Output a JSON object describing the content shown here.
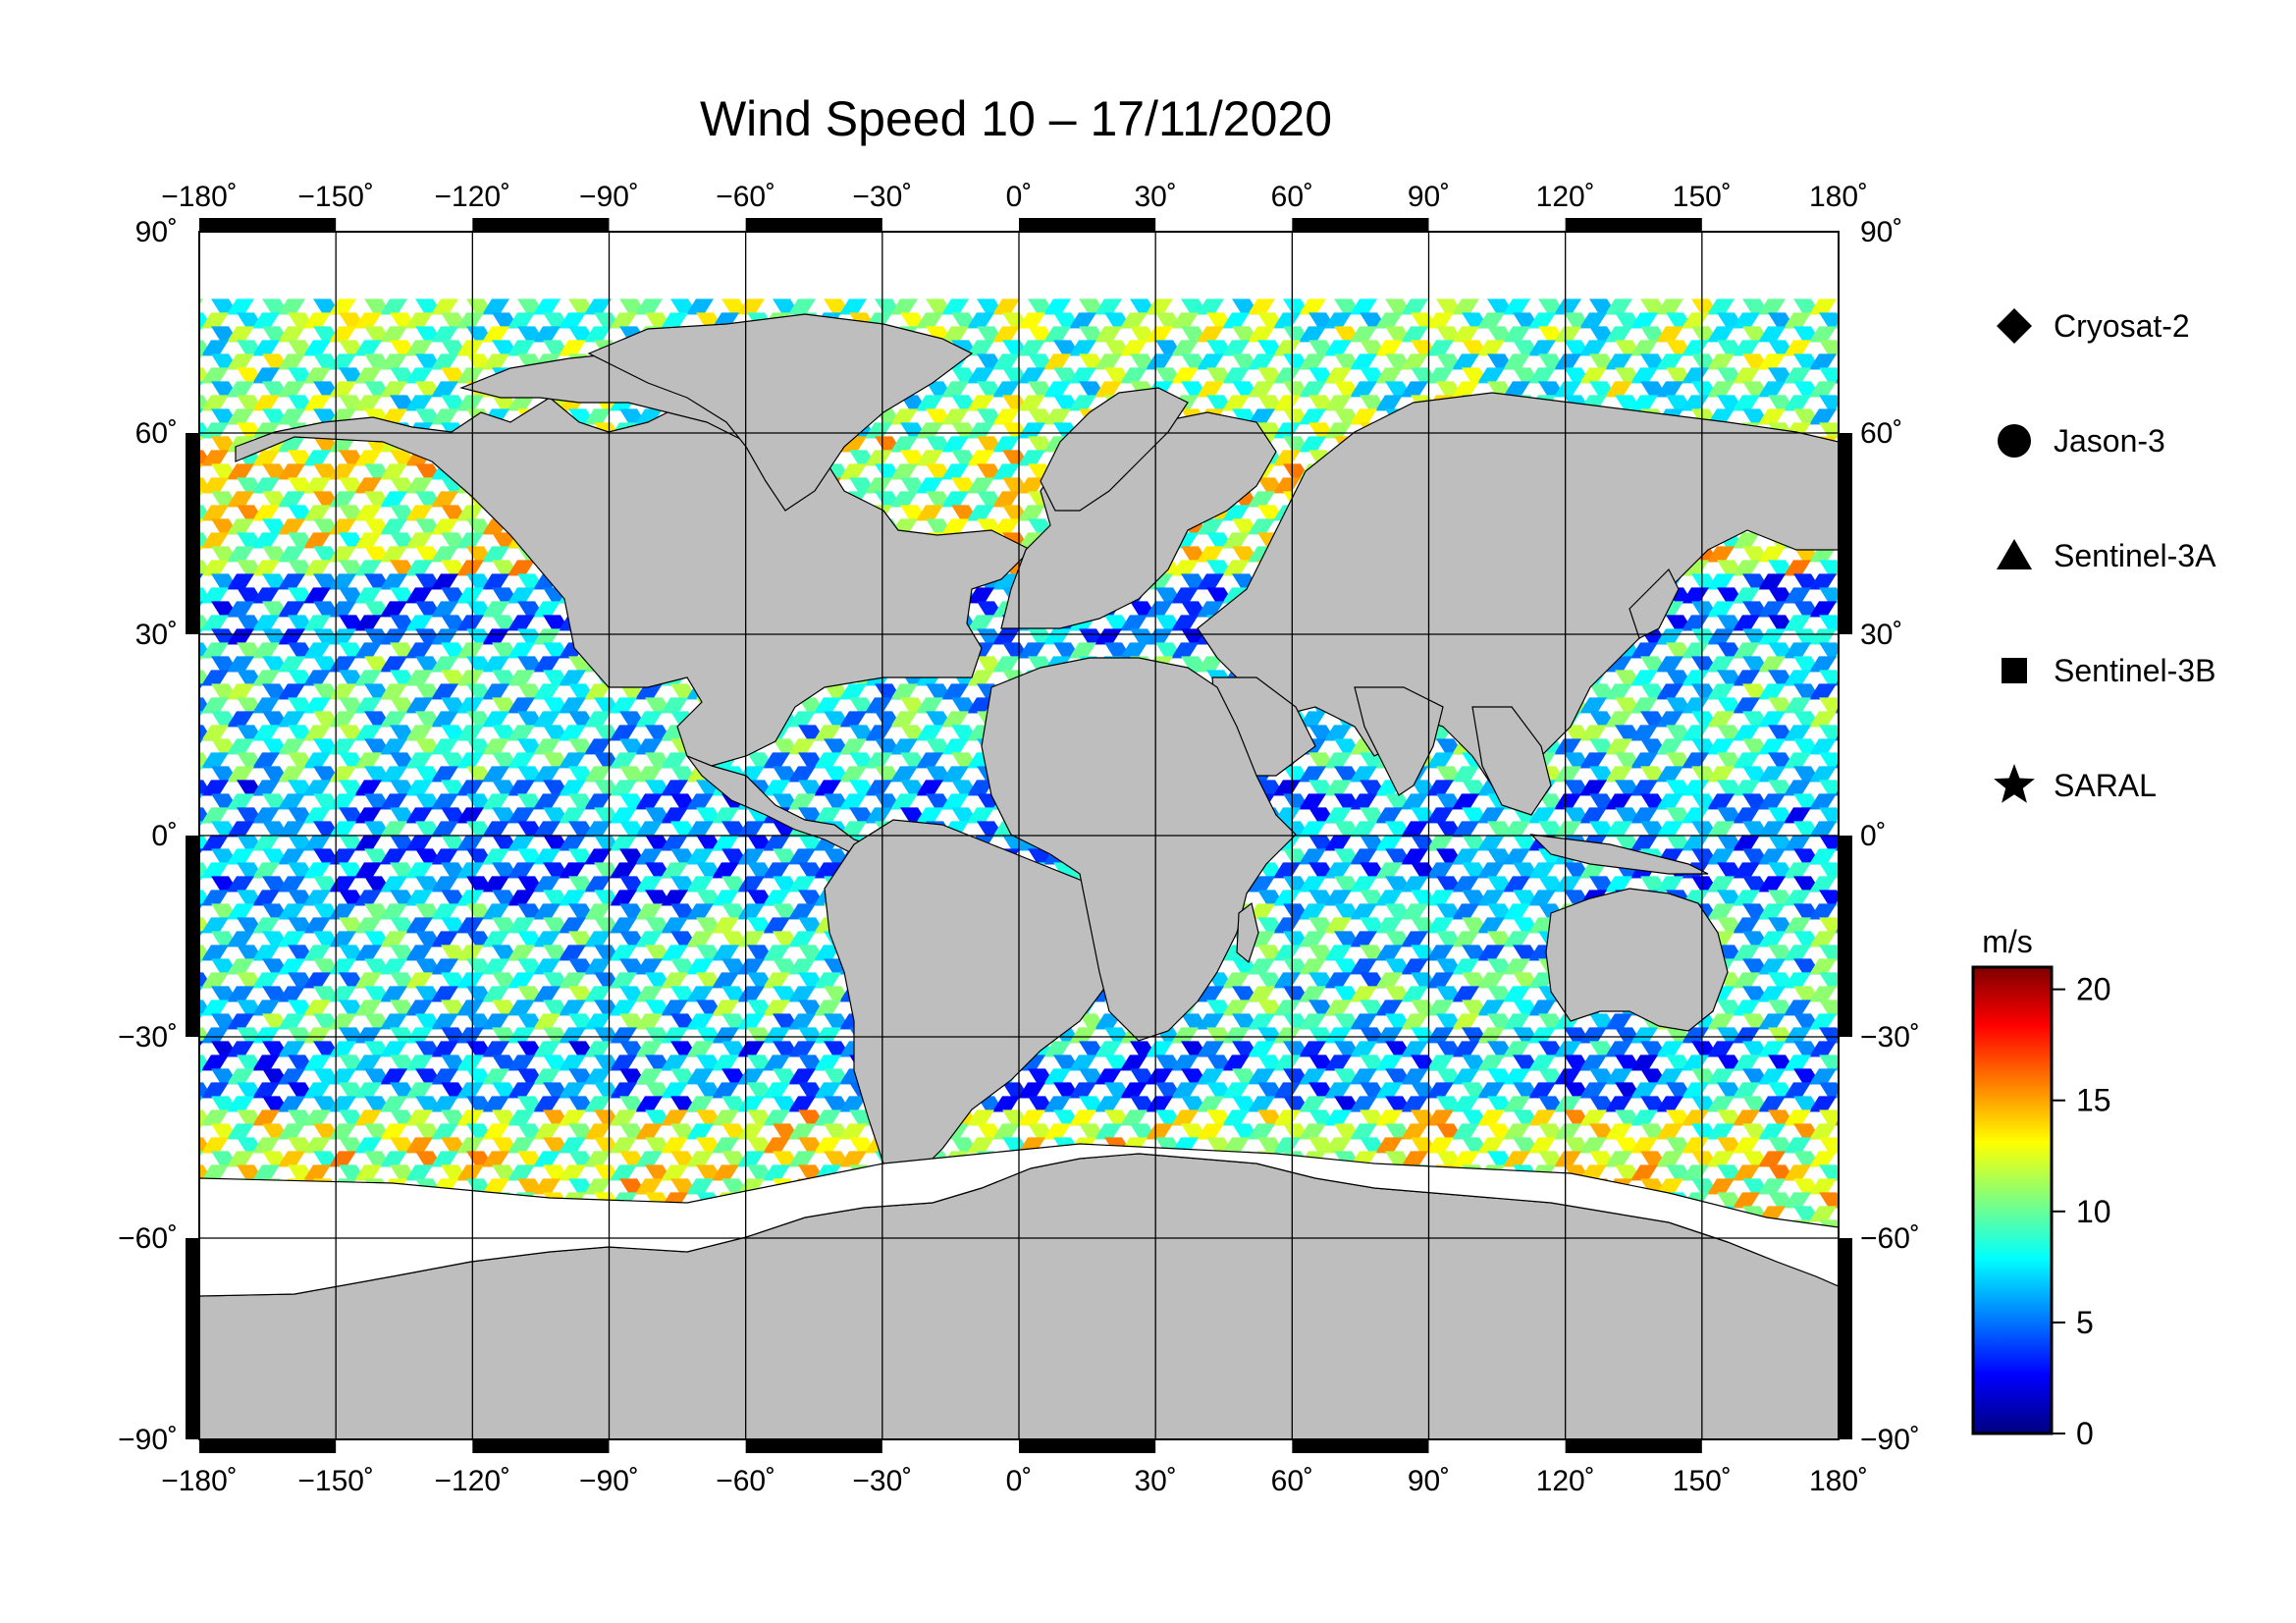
{
  "title": "Wind Speed 10 – 17/11/2020",
  "map": {
    "projection": "equirectangular",
    "lon_range": [
      -180,
      180
    ],
    "lat_range": [
      -90,
      90
    ],
    "lon_ticks": [
      -180,
      -150,
      -120,
      -90,
      -60,
      -30,
      0,
      30,
      60,
      90,
      120,
      150,
      180
    ],
    "lat_ticks": [
      -90,
      -60,
      -30,
      0,
      30,
      60,
      90
    ],
    "lon_tick_labels": [
      "−180˚",
      "−150˚",
      "−120˚",
      "−90˚",
      "−60˚",
      "−30˚",
      "0˚",
      "30˚",
      "60˚",
      "90˚",
      "120˚",
      "150˚",
      "180˚"
    ],
    "lat_tick_labels": [
      "−90˚",
      "−60˚",
      "−30˚",
      "0˚",
      "30˚",
      "60˚",
      "90˚"
    ],
    "grid": true,
    "land_color": "#bebebe",
    "ice_color": "#ffffff",
    "variable": "wind speed at 10 m",
    "data_extent_lat": [
      -65,
      80
    ]
  },
  "legend": {
    "placement": "right",
    "items": [
      {
        "label": "Cryosat-2",
        "marker": "diamond"
      },
      {
        "label": "Jason-3",
        "marker": "circle"
      },
      {
        "label": "Sentinel-3A",
        "marker": "triangle"
      },
      {
        "label": "Sentinel-3B",
        "marker": "square"
      },
      {
        "label": "SARAL",
        "marker": "star"
      }
    ]
  },
  "colorbar": {
    "unit": "m/s",
    "min": 0,
    "max": 21,
    "ticks": [
      0,
      5,
      10,
      15,
      20
    ],
    "tick_labels": [
      "0",
      "5",
      "10",
      "15",
      "20"
    ],
    "colormap": "jet",
    "colors": [
      "#00007f",
      "#0000ff",
      "#007fff",
      "#00ffff",
      "#7fff7f",
      "#ffff00",
      "#ff7f00",
      "#ff0000",
      "#7f0000"
    ]
  }
}
